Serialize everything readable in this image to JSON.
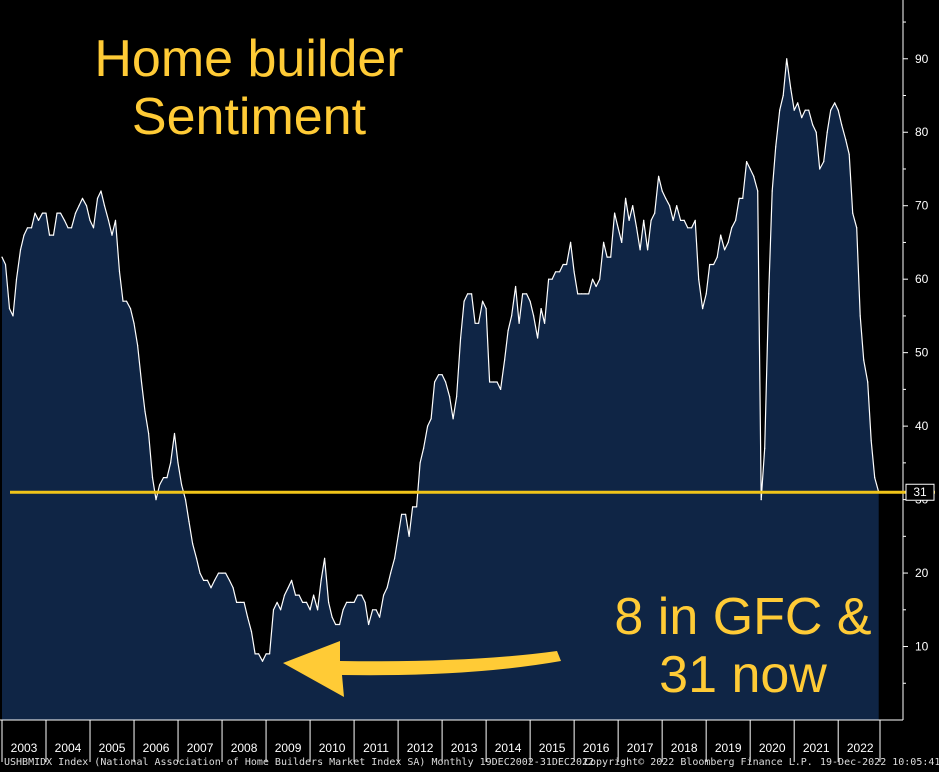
{
  "chart_data": {
    "type": "area",
    "title": "Home builder\nSentiment",
    "annotation": "8 in GFC &\n31 now",
    "ylim": [
      0,
      98
    ],
    "yticks": [
      10,
      20,
      30,
      40,
      50,
      60,
      70,
      80,
      90
    ],
    "x_start": 2003.0,
    "x_end": 2022.95,
    "xtick_labels": [
      "2003",
      "2004",
      "2005",
      "2006",
      "2007",
      "2008",
      "2009",
      "2010",
      "2011",
      "2012",
      "2013",
      "2014",
      "2015",
      "2016",
      "2017",
      "2018",
      "2019",
      "2020",
      "2021",
      "2022"
    ],
    "reference_line": {
      "value": 31,
      "label": "31",
      "color": "#f0c419"
    },
    "fill_color": "#0f2545",
    "line_color": "#ffffff",
    "series": [
      {
        "points": [
          [
            2003.0,
            63
          ],
          [
            2003.08,
            62
          ],
          [
            2003.17,
            56
          ],
          [
            2003.25,
            55
          ],
          [
            2003.33,
            60
          ],
          [
            2003.42,
            64
          ],
          [
            2003.5,
            66
          ],
          [
            2003.58,
            67
          ],
          [
            2003.67,
            67
          ],
          [
            2003.75,
            69
          ],
          [
            2003.83,
            68
          ],
          [
            2003.92,
            69
          ],
          [
            2004.0,
            69
          ],
          [
            2004.08,
            66
          ],
          [
            2004.17,
            66
          ],
          [
            2004.25,
            69
          ],
          [
            2004.33,
            69
          ],
          [
            2004.42,
            68
          ],
          [
            2004.5,
            67
          ],
          [
            2004.58,
            67
          ],
          [
            2004.67,
            69
          ],
          [
            2004.75,
            70
          ],
          [
            2004.83,
            71
          ],
          [
            2004.92,
            70
          ],
          [
            2005.0,
            68
          ],
          [
            2005.08,
            67
          ],
          [
            2005.17,
            71
          ],
          [
            2005.25,
            72
          ],
          [
            2005.33,
            70
          ],
          [
            2005.42,
            68
          ],
          [
            2005.5,
            66
          ],
          [
            2005.58,
            68
          ],
          [
            2005.67,
            61
          ],
          [
            2005.75,
            57
          ],
          [
            2005.83,
            57
          ],
          [
            2005.92,
            56
          ],
          [
            2006.0,
            54
          ],
          [
            2006.08,
            51
          ],
          [
            2006.17,
            46
          ],
          [
            2006.25,
            42
          ],
          [
            2006.33,
            39
          ],
          [
            2006.42,
            33
          ],
          [
            2006.5,
            30
          ],
          [
            2006.58,
            32
          ],
          [
            2006.67,
            33
          ],
          [
            2006.75,
            33
          ],
          [
            2006.83,
            35
          ],
          [
            2006.92,
            39
          ],
          [
            2007.0,
            35
          ],
          [
            2007.08,
            32
          ],
          [
            2007.17,
            30
          ],
          [
            2007.25,
            27
          ],
          [
            2007.33,
            24
          ],
          [
            2007.42,
            22
          ],
          [
            2007.5,
            20
          ],
          [
            2007.58,
            19
          ],
          [
            2007.67,
            19
          ],
          [
            2007.75,
            18
          ],
          [
            2007.83,
            19
          ],
          [
            2007.92,
            20
          ],
          [
            2008.0,
            20
          ],
          [
            2008.08,
            20
          ],
          [
            2008.17,
            19
          ],
          [
            2008.25,
            18
          ],
          [
            2008.33,
            16
          ],
          [
            2008.42,
            16
          ],
          [
            2008.5,
            16
          ],
          [
            2008.58,
            14
          ],
          [
            2008.67,
            12
          ],
          [
            2008.75,
            9
          ],
          [
            2008.83,
            9
          ],
          [
            2008.92,
            8
          ],
          [
            2009.0,
            9
          ],
          [
            2009.08,
            9
          ],
          [
            2009.17,
            15
          ],
          [
            2009.25,
            16
          ],
          [
            2009.33,
            15
          ],
          [
            2009.42,
            17
          ],
          [
            2009.5,
            18
          ],
          [
            2009.58,
            19
          ],
          [
            2009.67,
            17
          ],
          [
            2009.75,
            17
          ],
          [
            2009.83,
            16
          ],
          [
            2009.92,
            16
          ],
          [
            2010.0,
            15
          ],
          [
            2010.08,
            17
          ],
          [
            2010.17,
            15
          ],
          [
            2010.25,
            19
          ],
          [
            2010.33,
            22
          ],
          [
            2010.42,
            16
          ],
          [
            2010.5,
            14
          ],
          [
            2010.58,
            13
          ],
          [
            2010.67,
            13
          ],
          [
            2010.75,
            15
          ],
          [
            2010.83,
            16
          ],
          [
            2010.92,
            16
          ],
          [
            2011.0,
            16
          ],
          [
            2011.08,
            17
          ],
          [
            2011.17,
            17
          ],
          [
            2011.25,
            16
          ],
          [
            2011.33,
            13
          ],
          [
            2011.42,
            15
          ],
          [
            2011.5,
            15
          ],
          [
            2011.58,
            14
          ],
          [
            2011.67,
            17
          ],
          [
            2011.75,
            18
          ],
          [
            2011.83,
            20
          ],
          [
            2011.92,
            22
          ],
          [
            2012.0,
            25
          ],
          [
            2012.08,
            28
          ],
          [
            2012.17,
            28
          ],
          [
            2012.25,
            25
          ],
          [
            2012.33,
            29
          ],
          [
            2012.42,
            29
          ],
          [
            2012.5,
            35
          ],
          [
            2012.58,
            37
          ],
          [
            2012.67,
            40
          ],
          [
            2012.75,
            41
          ],
          [
            2012.83,
            46
          ],
          [
            2012.92,
            47
          ],
          [
            2013.0,
            47
          ],
          [
            2013.08,
            46
          ],
          [
            2013.17,
            44
          ],
          [
            2013.25,
            41
          ],
          [
            2013.33,
            44
          ],
          [
            2013.42,
            52
          ],
          [
            2013.5,
            57
          ],
          [
            2013.58,
            58
          ],
          [
            2013.67,
            58
          ],
          [
            2013.75,
            54
          ],
          [
            2013.83,
            54
          ],
          [
            2013.92,
            57
          ],
          [
            2014.0,
            56
          ],
          [
            2014.08,
            46
          ],
          [
            2014.17,
            46
          ],
          [
            2014.25,
            46
          ],
          [
            2014.33,
            45
          ],
          [
            2014.42,
            49
          ],
          [
            2014.5,
            53
          ],
          [
            2014.58,
            55
          ],
          [
            2014.67,
            59
          ],
          [
            2014.75,
            54
          ],
          [
            2014.83,
            58
          ],
          [
            2014.92,
            58
          ],
          [
            2015.0,
            57
          ],
          [
            2015.08,
            55
          ],
          [
            2015.17,
            52
          ],
          [
            2015.25,
            56
          ],
          [
            2015.33,
            54
          ],
          [
            2015.42,
            60
          ],
          [
            2015.5,
            60
          ],
          [
            2015.58,
            61
          ],
          [
            2015.67,
            61
          ],
          [
            2015.75,
            62
          ],
          [
            2015.83,
            62
          ],
          [
            2015.92,
            65
          ],
          [
            2016.0,
            61
          ],
          [
            2016.08,
            58
          ],
          [
            2016.17,
            58
          ],
          [
            2016.25,
            58
          ],
          [
            2016.33,
            58
          ],
          [
            2016.42,
            60
          ],
          [
            2016.5,
            59
          ],
          [
            2016.58,
            60
          ],
          [
            2016.67,
            65
          ],
          [
            2016.75,
            63
          ],
          [
            2016.83,
            63
          ],
          [
            2016.92,
            69
          ],
          [
            2017.0,
            67
          ],
          [
            2017.08,
            65
          ],
          [
            2017.17,
            71
          ],
          [
            2017.25,
            68
          ],
          [
            2017.33,
            70
          ],
          [
            2017.42,
            67
          ],
          [
            2017.5,
            64
          ],
          [
            2017.58,
            68
          ],
          [
            2017.67,
            64
          ],
          [
            2017.75,
            68
          ],
          [
            2017.83,
            69
          ],
          [
            2017.92,
            74
          ],
          [
            2018.0,
            72
          ],
          [
            2018.08,
            71
          ],
          [
            2018.17,
            70
          ],
          [
            2018.25,
            68
          ],
          [
            2018.33,
            70
          ],
          [
            2018.42,
            68
          ],
          [
            2018.5,
            68
          ],
          [
            2018.58,
            67
          ],
          [
            2018.67,
            67
          ],
          [
            2018.75,
            68
          ],
          [
            2018.83,
            60
          ],
          [
            2018.92,
            56
          ],
          [
            2019.0,
            58
          ],
          [
            2019.08,
            62
          ],
          [
            2019.17,
            62
          ],
          [
            2019.25,
            63
          ],
          [
            2019.33,
            66
          ],
          [
            2019.42,
            64
          ],
          [
            2019.5,
            65
          ],
          [
            2019.58,
            67
          ],
          [
            2019.67,
            68
          ],
          [
            2019.75,
            71
          ],
          [
            2019.83,
            71
          ],
          [
            2019.92,
            76
          ],
          [
            2020.0,
            75
          ],
          [
            2020.08,
            74
          ],
          [
            2020.17,
            72
          ],
          [
            2020.25,
            30
          ],
          [
            2020.33,
            37
          ],
          [
            2020.42,
            58
          ],
          [
            2020.5,
            72
          ],
          [
            2020.58,
            78
          ],
          [
            2020.67,
            83
          ],
          [
            2020.75,
            85
          ],
          [
            2020.83,
            90
          ],
          [
            2020.92,
            86
          ],
          [
            2021.0,
            83
          ],
          [
            2021.08,
            84
          ],
          [
            2021.17,
            82
          ],
          [
            2021.25,
            83
          ],
          [
            2021.33,
            83
          ],
          [
            2021.42,
            81
          ],
          [
            2021.5,
            80
          ],
          [
            2021.58,
            75
          ],
          [
            2021.67,
            76
          ],
          [
            2021.75,
            80
          ],
          [
            2021.83,
            83
          ],
          [
            2021.92,
            84
          ],
          [
            2022.0,
            83
          ],
          [
            2022.08,
            81
          ],
          [
            2022.17,
            79
          ],
          [
            2022.25,
            77
          ],
          [
            2022.33,
            69
          ],
          [
            2022.42,
            67
          ],
          [
            2022.5,
            55
          ],
          [
            2022.58,
            49
          ],
          [
            2022.67,
            46
          ],
          [
            2022.75,
            38
          ],
          [
            2022.83,
            33
          ],
          [
            2022.92,
            31
          ]
        ]
      }
    ]
  },
  "footer": {
    "left": "USHBMIDX Index (National Association of Home Builders Market Index SA)  Monthly 19DEC2002-31DEC2022",
    "center": "Copyright© 2022 Bloomberg Finance L.P.",
    "right": "19-Dec-2022 10:05:41"
  }
}
